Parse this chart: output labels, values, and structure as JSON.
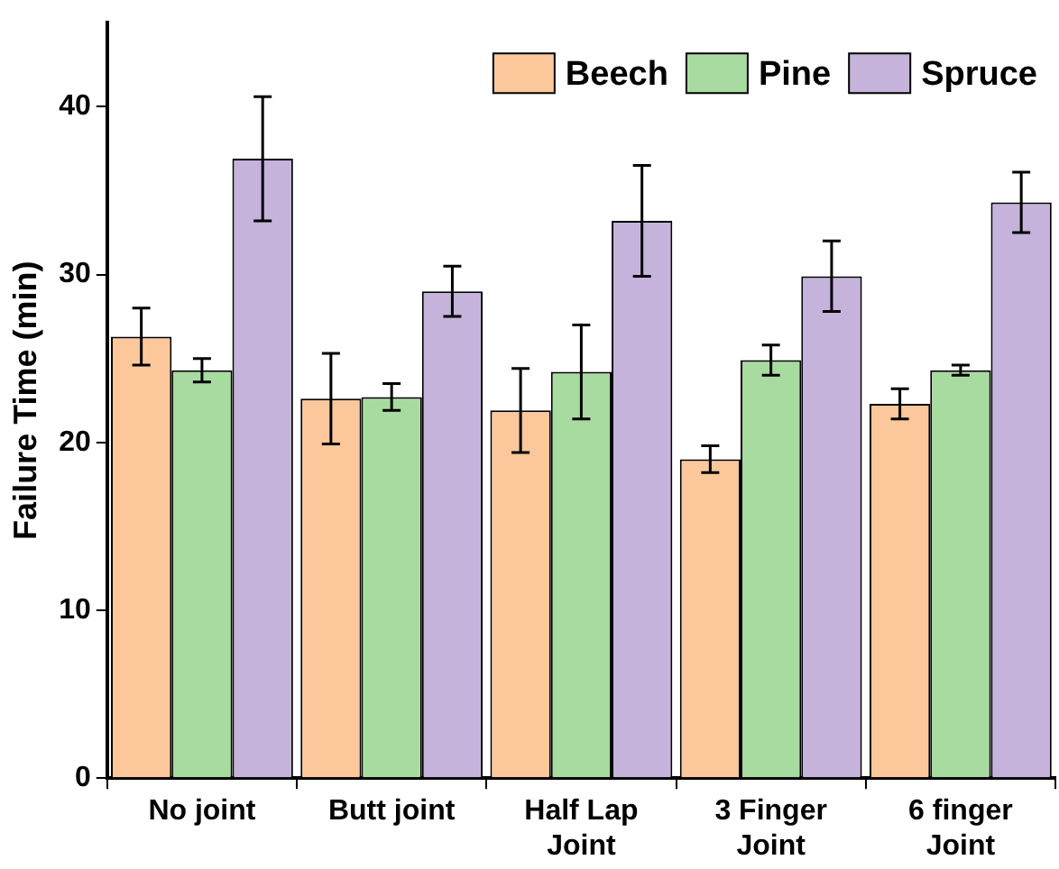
{
  "chart_data": {
    "type": "bar",
    "ylabel": "Failure Time (min)",
    "categories": [
      "No joint",
      "Butt joint",
      "Half Lap\nJoint",
      "3 Finger\nJoint",
      "6 finger\nJoint"
    ],
    "series": [
      {
        "name": "Beech",
        "color": "#fcc89b",
        "values": [
          26.3,
          22.6,
          21.9,
          19.0,
          22.3
        ],
        "errors": [
          1.7,
          2.7,
          2.5,
          0.8,
          0.9
        ]
      },
      {
        "name": "Pine",
        "color": "#a8dba0",
        "values": [
          24.3,
          22.7,
          24.2,
          24.9,
          24.3
        ],
        "errors": [
          0.7,
          0.8,
          2.8,
          0.9,
          0.3
        ]
      },
      {
        "name": "Spruce",
        "color": "#c5b3dc",
        "values": [
          36.9,
          29.0,
          33.2,
          29.9,
          34.3
        ],
        "errors": [
          3.7,
          1.5,
          3.3,
          2.1,
          1.8
        ]
      }
    ],
    "ylim": [
      0,
      45
    ],
    "yticks": [
      0,
      10,
      20,
      30,
      40
    ],
    "grid": false,
    "legend": "top right"
  }
}
